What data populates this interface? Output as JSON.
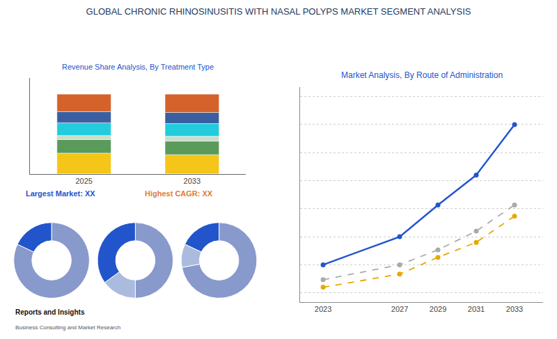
{
  "title": "GLOBAL CHRONIC RHINOSINUSITIS WITH NASAL POLYPS MARKET SEGMENT ANALYSIS",
  "annotations": [
    {
      "text": "Largest Market: XX",
      "color": "#2255cc"
    },
    {
      "text": "Highest CAGR: XX",
      "color": "#e07b39"
    },
    {
      "text": "Reports and Insights",
      "color": "#111111"
    },
    {
      "text": "Business Consulting and Market Research",
      "color": "#555555"
    }
  ],
  "chart_data": [
    {
      "type": "bar",
      "title": "Revenue Share Analysis, By Treatment Type",
      "categories": [
        "2025",
        "2033"
      ],
      "stacked": true,
      "series": [
        {
          "color": "#f5c518",
          "values": [
            0.26,
            0.24
          ]
        },
        {
          "color": "#5a9a5a",
          "values": [
            0.17,
            0.17
          ]
        },
        {
          "color": "#c8ddc8",
          "values": [
            0.05,
            0.06
          ]
        },
        {
          "color": "#22ccdd",
          "values": [
            0.16,
            0.16
          ]
        },
        {
          "color": "#3a5fa0",
          "values": [
            0.14,
            0.14
          ]
        },
        {
          "color": "#d4622a",
          "values": [
            0.22,
            0.23
          ]
        }
      ],
      "ylim": [
        0,
        1.2
      ],
      "tick_labels": "x",
      "grid": false
    },
    {
      "type": "donut",
      "values": [
        82,
        18
      ],
      "colors": [
        "#8899cc",
        "#2255cc"
      ]
    },
    {
      "type": "donut",
      "values": [
        50,
        35,
        15
      ],
      "colors": [
        "#8899cc",
        "#2255cc",
        "#aabbdd"
      ]
    },
    {
      "type": "donut",
      "values": [
        72,
        18,
        10
      ],
      "colors": [
        "#8899cc",
        "#2255cc",
        "#aabbdd"
      ]
    },
    {
      "type": "line",
      "title": "Market Analysis, By Route of Administration",
      "x": [
        2023,
        2027,
        2029,
        2031,
        2033
      ],
      "xlim": [
        2021.8,
        2034.5
      ],
      "xticks": [
        2023,
        2027,
        2029,
        2031,
        2033
      ],
      "ylim": [
        0,
        11.5
      ],
      "yticks": [
        0.5,
        2,
        3.5,
        5,
        6.5,
        8,
        9.5,
        11
      ],
      "tick_labels": "x",
      "grid": true,
      "series": [
        {
          "color": "#2255cc",
          "line_style": "solid",
          "marker": "circle",
          "values": [
            2.0,
            3.5,
            5.2,
            6.8,
            9.5
          ]
        },
        {
          "color": "#aaaaaa",
          "line_style": "dashed",
          "marker": "circle",
          "values": [
            1.2,
            2.0,
            2.8,
            3.8,
            5.2
          ]
        },
        {
          "color": "#e5a800",
          "line_style": "dashed",
          "marker": "circle",
          "values": [
            0.8,
            1.5,
            2.4,
            3.2,
            4.6
          ]
        }
      ]
    }
  ]
}
